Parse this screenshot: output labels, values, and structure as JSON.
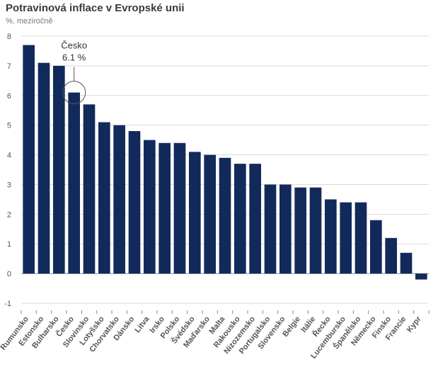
{
  "title": "Potravinová inflace v Evropské unii",
  "subtitle": "%, meziročně",
  "colors": {
    "bar": "#12295b",
    "grid": "#d9d9d9",
    "axis": "#888888"
  },
  "chart_data": {
    "type": "bar",
    "title": "Potravinová inflace v Evropské unii",
    "ylabel": "%, meziročně",
    "ylim": [
      -1,
      8
    ],
    "yticks": [
      -1,
      0,
      1,
      2,
      3,
      4,
      5,
      6,
      7,
      8
    ],
    "grid": true,
    "categories": [
      "Rumunsko",
      "Estonsko",
      "Bulharsko",
      "Česko",
      "Slovinsko",
      "Lotyšsko",
      "Chorvatsko",
      "Dánsko",
      "Litva",
      "Irsko",
      "Polsko",
      "Švédsko",
      "Maďarsko",
      "Malta",
      "Rakousko",
      "Nizozemsko",
      "Portugalsko",
      "Slovensko",
      "Belgie",
      "Itálie",
      "Řecko",
      "Lucembursko",
      "Španělsko",
      "Německo",
      "Finsko",
      "Francie",
      "Kypr"
    ],
    "values": [
      7.7,
      7.1,
      7.0,
      6.1,
      5.7,
      5.1,
      5.0,
      4.8,
      4.5,
      4.4,
      4.4,
      4.1,
      4.0,
      3.9,
      3.7,
      3.7,
      3.0,
      3.0,
      2.9,
      2.9,
      2.5,
      2.4,
      2.4,
      1.8,
      1.2,
      0.7,
      -0.2
    ],
    "annotation": {
      "category": "Česko",
      "label_line1": "Česko",
      "label_line2": "6.1 %"
    }
  }
}
